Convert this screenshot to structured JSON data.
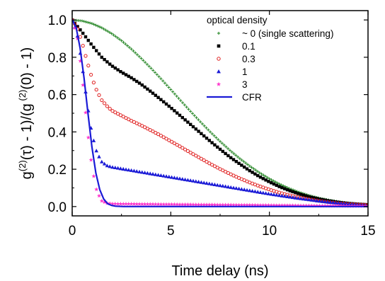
{
  "chart_data": {
    "type": "scatter",
    "title": "",
    "xlabel": "Time delay (ns)",
    "ylabel": "(g(2)(τ) - 1)/(g(2)(0) - 1)",
    "ylabel_parts": {
      "g1": "g",
      "sup1": "(2)",
      "mid1": "(τ) - 1)/(",
      "g2": "g",
      "sup2": " (2)",
      "tail": "(0) - 1)"
    },
    "xlim": [
      0,
      15
    ],
    "ylim": [
      -0.05,
      1.05
    ],
    "xticks": [
      0,
      5,
      10,
      15
    ],
    "yticks": [
      0.0,
      0.2,
      0.4,
      0.6,
      0.8,
      1.0
    ],
    "xtick_labels": [
      "0",
      "5",
      "10",
      "15"
    ],
    "ytick_labels": [
      "0.0",
      "0.2",
      "0.4",
      "0.6",
      "0.8",
      "1.0"
    ],
    "grid": false,
    "legend": {
      "title": "optical density",
      "placement": "top-right"
    },
    "series": [
      {
        "name": "~ 0 (single scattering)",
        "marker": "plus",
        "color": "#2e8b2e",
        "x": [
          0,
          0.5,
          1,
          1.5,
          2,
          2.5,
          3,
          3.5,
          4,
          4.5,
          5,
          5.5,
          6,
          6.5,
          7,
          7.5,
          8,
          8.5,
          9,
          9.5,
          10,
          10.5,
          11,
          11.5,
          12,
          12.5,
          13,
          13.5,
          14,
          14.5,
          15
        ],
        "y": [
          1.0,
          0.995,
          0.981,
          0.958,
          0.927,
          0.889,
          0.844,
          0.794,
          0.741,
          0.685,
          0.627,
          0.568,
          0.51,
          0.454,
          0.4,
          0.349,
          0.301,
          0.257,
          0.217,
          0.181,
          0.149,
          0.121,
          0.097,
          0.077,
          0.06,
          0.046,
          0.035,
          0.026,
          0.019,
          0.014,
          0.01
        ]
      },
      {
        "name": "0.1",
        "marker": "square",
        "color": "#000000",
        "x": [
          0,
          0.5,
          1,
          1.5,
          2,
          2.5,
          3,
          3.5,
          4,
          4.5,
          5,
          5.5,
          6,
          6.5,
          7,
          7.5,
          8,
          8.5,
          9,
          9.5,
          10,
          10.5,
          11,
          11.5,
          12,
          12.5,
          13,
          13.5,
          14,
          14.5,
          15
        ],
        "y": [
          1.0,
          0.935,
          0.865,
          0.8,
          0.755,
          0.72,
          0.69,
          0.655,
          0.615,
          0.573,
          0.53,
          0.485,
          0.44,
          0.395,
          0.35,
          0.307,
          0.265,
          0.228,
          0.192,
          0.16,
          0.132,
          0.107,
          0.086,
          0.068,
          0.053,
          0.041,
          0.031,
          0.023,
          0.017,
          0.013,
          0.01
        ]
      },
      {
        "name": "0.3",
        "marker": "circle",
        "color": "#e02020",
        "x": [
          0,
          0.25,
          0.5,
          0.75,
          1,
          1.25,
          1.5,
          1.75,
          2,
          2.5,
          3,
          3.5,
          4,
          4.5,
          5,
          5.5,
          6,
          6.5,
          7,
          7.5,
          8,
          8.5,
          9,
          9.5,
          10,
          10.5,
          11,
          11.5,
          12,
          12.5,
          13,
          13.5,
          14,
          14.5,
          15
        ],
        "y": [
          1.0,
          0.96,
          0.88,
          0.78,
          0.69,
          0.62,
          0.57,
          0.54,
          0.515,
          0.487,
          0.46,
          0.435,
          0.408,
          0.38,
          0.35,
          0.32,
          0.289,
          0.259,
          0.229,
          0.201,
          0.175,
          0.151,
          0.129,
          0.109,
          0.091,
          0.075,
          0.061,
          0.049,
          0.039,
          0.031,
          0.024,
          0.018,
          0.014,
          0.011,
          0.008
        ]
      },
      {
        "name": "1",
        "marker": "triangle",
        "color": "#1a1ad6",
        "x": [
          0,
          0.25,
          0.5,
          0.75,
          1,
          1.25,
          1.5,
          1.75,
          2,
          2.5,
          3,
          3.5,
          4,
          4.5,
          5,
          5.5,
          6,
          6.5,
          7,
          7.5,
          8,
          8.5,
          9,
          9.5,
          10,
          10.5,
          11,
          11.5,
          12,
          12.5,
          13,
          13.5,
          14,
          14.5,
          15
        ],
        "y": [
          1.0,
          0.93,
          0.76,
          0.56,
          0.39,
          0.29,
          0.24,
          0.22,
          0.212,
          0.203,
          0.194,
          0.185,
          0.176,
          0.167,
          0.158,
          0.149,
          0.14,
          0.131,
          0.122,
          0.113,
          0.104,
          0.095,
          0.086,
          0.077,
          0.068,
          0.06,
          0.052,
          0.044,
          0.037,
          0.03,
          0.024,
          0.019,
          0.014,
          0.01,
          0.006
        ]
      },
      {
        "name": "3",
        "marker": "star",
        "color": "#ff33cc",
        "x": [
          0,
          0.25,
          0.5,
          0.75,
          1,
          1.25,
          1.5,
          1.75,
          2,
          2.5,
          3,
          3.5,
          4,
          4.5,
          5,
          5.5,
          6,
          6.5,
          7,
          7.5,
          8,
          8.5,
          9,
          9.5,
          10,
          10.5,
          11,
          11.5,
          12,
          12.5,
          13,
          13.5,
          14,
          14.5,
          15
        ],
        "y": [
          1.0,
          0.92,
          0.7,
          0.43,
          0.21,
          0.08,
          0.03,
          0.018,
          0.015,
          0.014,
          0.014,
          0.013,
          0.013,
          0.012,
          0.012,
          0.011,
          0.011,
          0.01,
          0.01,
          0.009,
          0.009,
          0.008,
          0.008,
          0.007,
          0.007,
          0.006,
          0.006,
          0.005,
          0.005,
          0.004,
          0.004,
          0.004,
          0.003,
          0.003,
          0.003
        ]
      },
      {
        "name": "CFR",
        "marker": "line",
        "color": "#1a1ad6",
        "x": [
          0,
          0.2,
          0.4,
          0.6,
          0.8,
          1.0,
          1.2,
          1.4,
          1.6,
          1.8,
          2.0,
          2.2,
          2.4,
          2.6,
          3.0,
          4,
          5,
          6,
          7,
          8,
          9,
          10,
          11,
          12,
          13,
          14,
          15
        ],
        "y": [
          1.0,
          0.96,
          0.85,
          0.69,
          0.5,
          0.32,
          0.18,
          0.09,
          0.04,
          0.015,
          0.006,
          0.002,
          0.001,
          0.0,
          0.0,
          0.0,
          0.0,
          0.0,
          0.0,
          0.0,
          0.0,
          0.0,
          0.0,
          0.0,
          0.0,
          0.0,
          0.0
        ]
      }
    ]
  }
}
